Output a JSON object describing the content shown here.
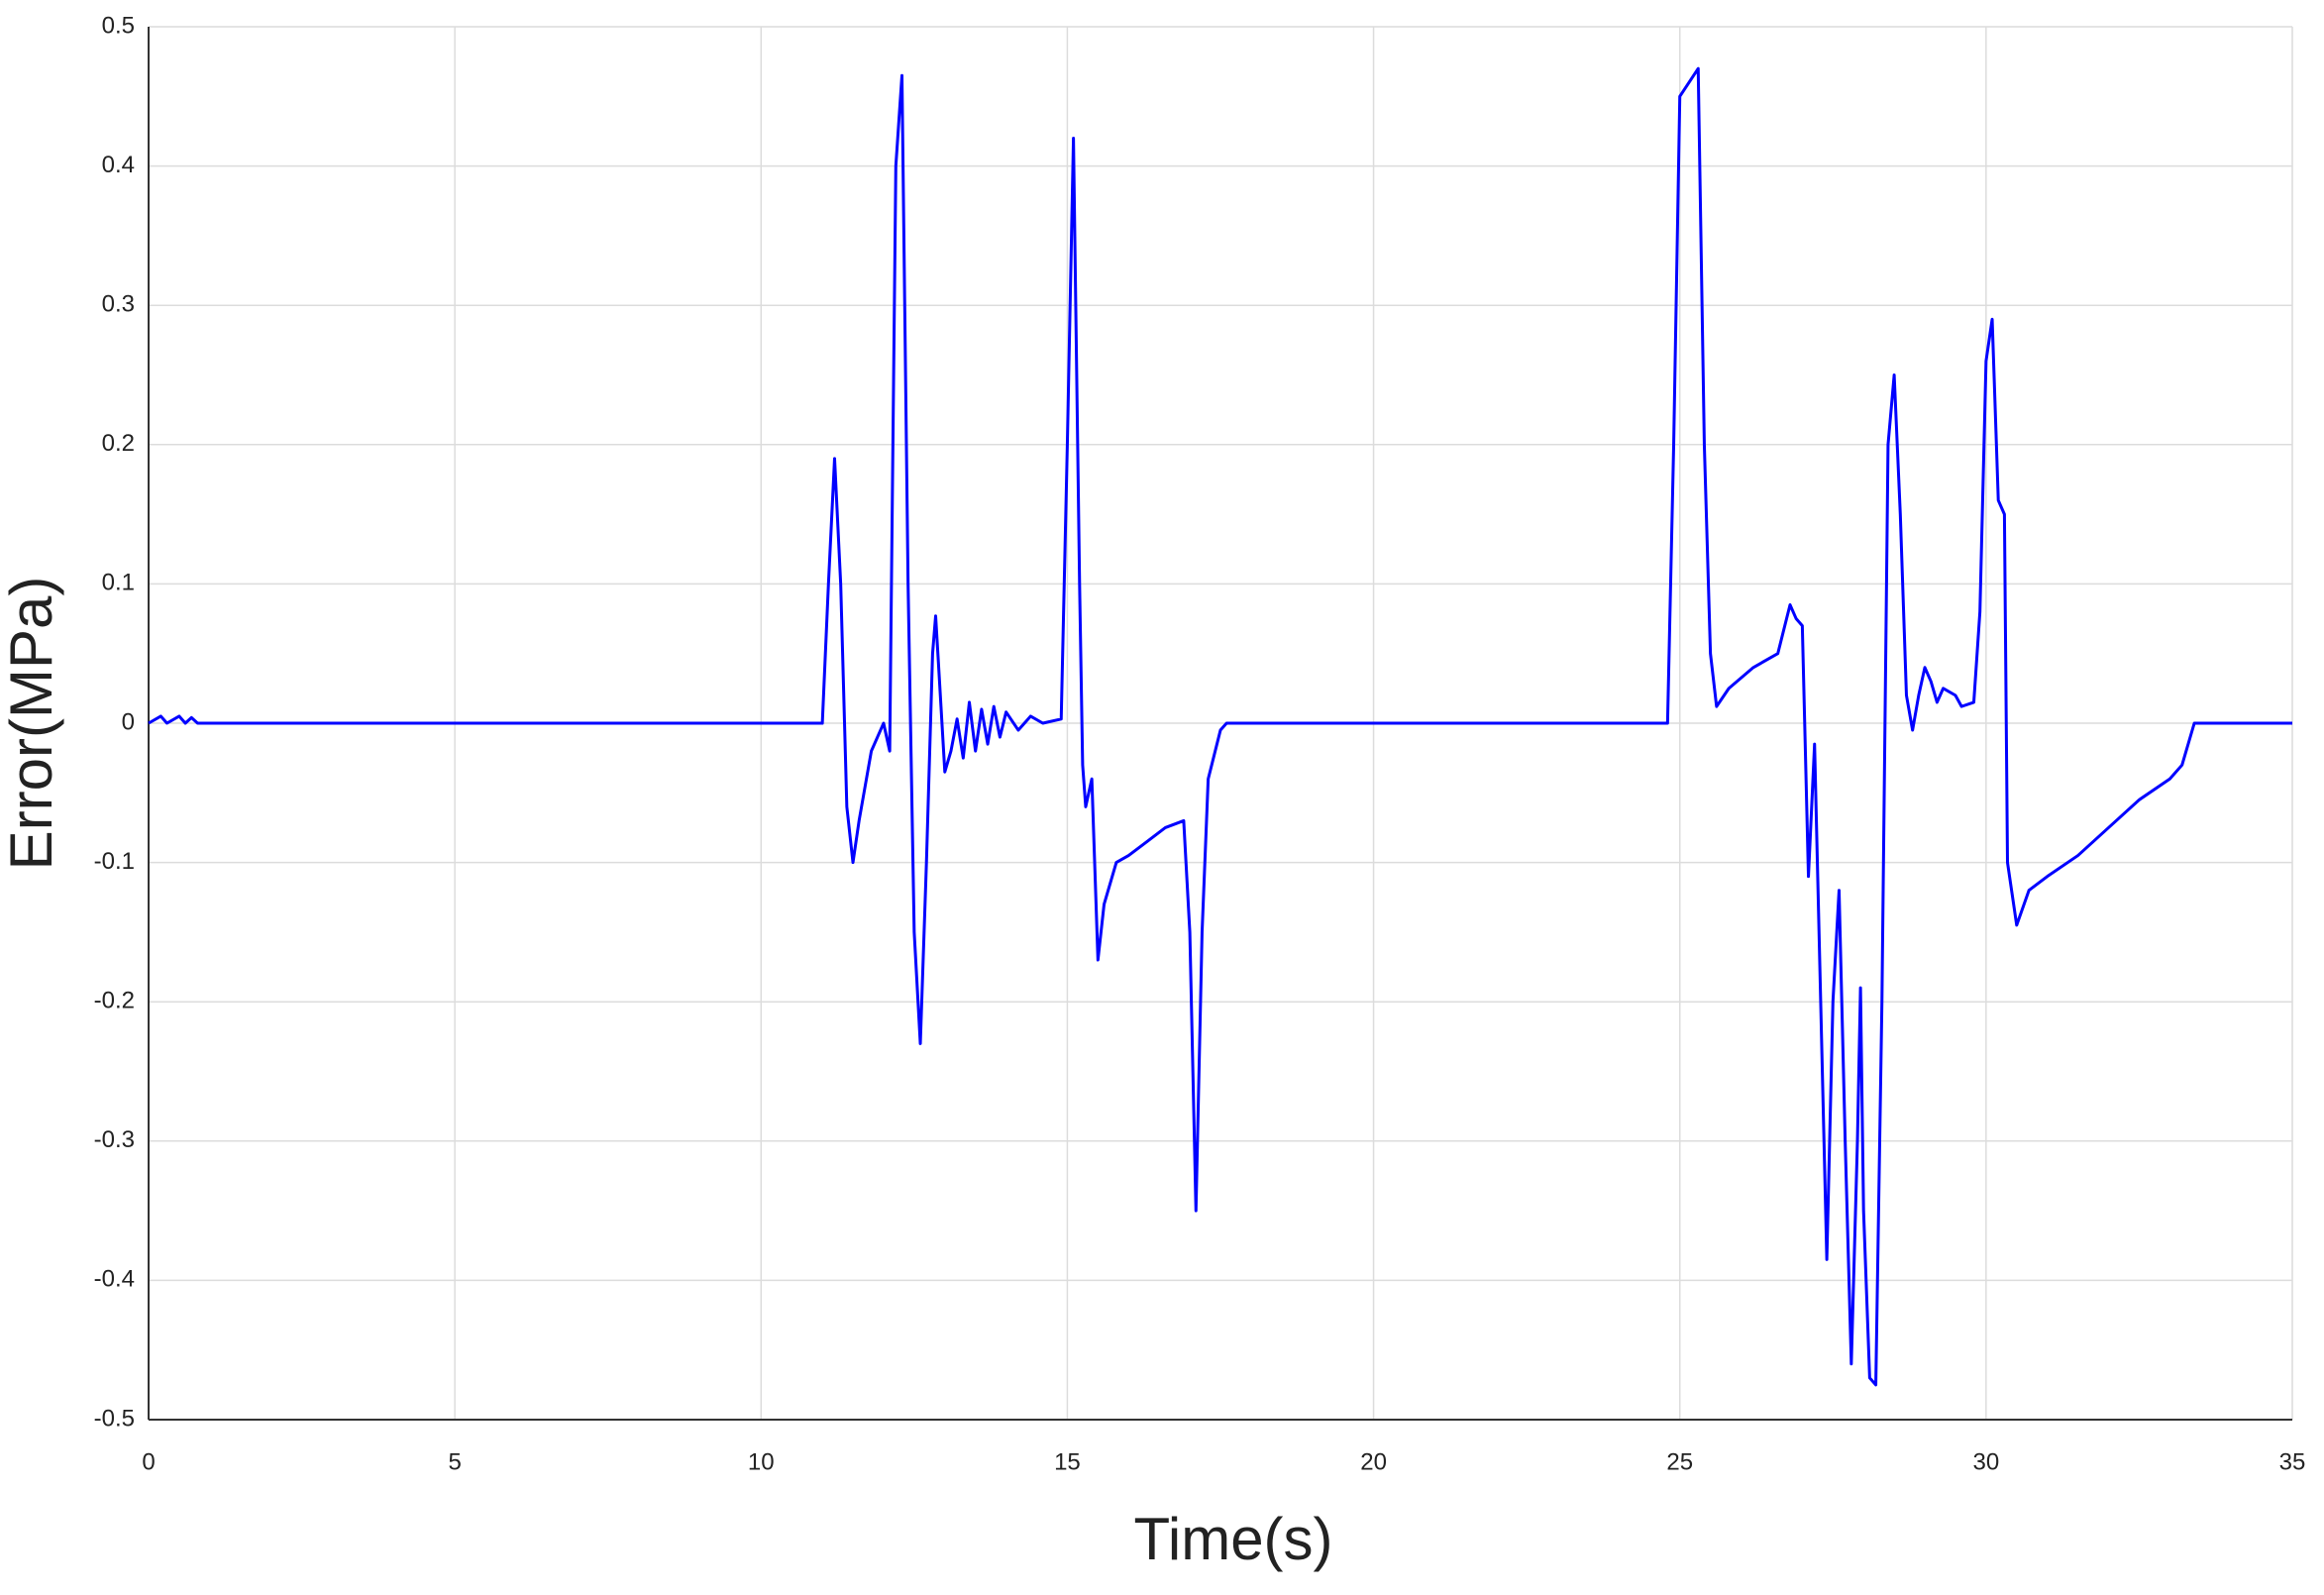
{
  "chart_data": {
    "type": "line",
    "xlabel": "Time(s)",
    "ylabel": "Error(MPa)",
    "x": [
      0,
      0.2,
      0.3,
      0.5,
      0.6,
      0.7,
      0.8,
      11.0,
      11.1,
      11.2,
      11.3,
      11.4,
      11.5,
      11.6,
      11.8,
      12.0,
      12.1,
      12.2,
      12.3,
      12.4,
      12.5,
      12.6,
      12.7,
      12.8,
      12.85,
      12.9,
      13.0,
      13.1,
      13.2,
      13.3,
      13.4,
      13.5,
      13.6,
      13.7,
      13.8,
      13.9,
      14.0,
      14.2,
      14.4,
      14.6,
      14.9,
      15.0,
      15.1,
      15.2,
      15.25,
      15.3,
      15.4,
      15.5,
      15.6,
      15.8,
      16.0,
      16.3,
      16.6,
      16.9,
      17.0,
      17.1,
      17.2,
      17.3,
      17.5,
      17.6,
      24.8,
      24.9,
      25.0,
      25.3,
      25.4,
      25.5,
      25.6,
      25.8,
      26.2,
      26.6,
      26.8,
      26.9,
      27.0,
      27.1,
      27.2,
      27.3,
      27.4,
      27.5,
      27.6,
      27.7,
      27.8,
      27.9,
      27.95,
      28.0,
      28.1,
      28.2,
      28.3,
      28.4,
      28.5,
      28.6,
      28.7,
      28.8,
      28.9,
      29.0,
      29.1,
      29.2,
      29.3,
      29.5,
      29.6,
      29.8,
      29.9,
      30.0,
      30.1,
      30.2,
      30.3,
      30.35,
      30.5,
      30.7,
      31.0,
      31.5,
      32.0,
      32.5,
      33.0,
      33.2,
      33.4,
      35
    ],
    "series": [
      {
        "color": "#0000ff",
        "values": [
          0,
          0.005,
          0,
          0.005,
          0,
          0.004,
          0,
          0,
          0.1,
          0.19,
          0.1,
          -0.06,
          -0.1,
          -0.07,
          -0.02,
          0,
          -0.02,
          0.4,
          0.465,
          0.1,
          -0.15,
          -0.23,
          -0.1,
          0.05,
          0.077,
          0.04,
          -0.035,
          -0.02,
          0.003,
          -0.025,
          0.015,
          -0.02,
          0.01,
          -0.015,
          0.012,
          -0.01,
          0.008,
          -0.005,
          0.005,
          0,
          0.003,
          0.2,
          0.42,
          0.1,
          -0.03,
          -0.06,
          -0.04,
          -0.17,
          -0.13,
          -0.1,
          -0.095,
          -0.085,
          -0.075,
          -0.07,
          -0.15,
          -0.35,
          -0.15,
          -0.04,
          -0.005,
          0,
          0,
          0.2,
          0.45,
          0.47,
          0.2,
          0.05,
          0.012,
          0.025,
          0.04,
          0.05,
          0.085,
          0.075,
          0.07,
          -0.11,
          -0.015,
          -0.2,
          -0.385,
          -0.2,
          -0.12,
          -0.3,
          -0.46,
          -0.3,
          -0.19,
          -0.35,
          -0.47,
          -0.475,
          -0.2,
          0.2,
          0.25,
          0.15,
          0.02,
          -0.005,
          0.02,
          0.04,
          0.03,
          0.015,
          0.025,
          0.02,
          0.012,
          0.015,
          0.08,
          0.26,
          0.29,
          0.16,
          0.15,
          -0.1,
          -0.145,
          -0.12,
          -0.11,
          -0.095,
          -0.075,
          -0.055,
          -0.04,
          -0.03,
          0,
          0
        ]
      }
    ],
    "xlim": [
      0,
      35
    ],
    "xticks": [
      0,
      5,
      10,
      15,
      20,
      25,
      30,
      35
    ],
    "ylim": [
      -0.5,
      0.5
    ],
    "yticks": [
      -0.5,
      -0.4,
      -0.3,
      -0.2,
      -0.1,
      0,
      0.1,
      0.2,
      0.3,
      0.4,
      0.5
    ],
    "grid": true
  }
}
